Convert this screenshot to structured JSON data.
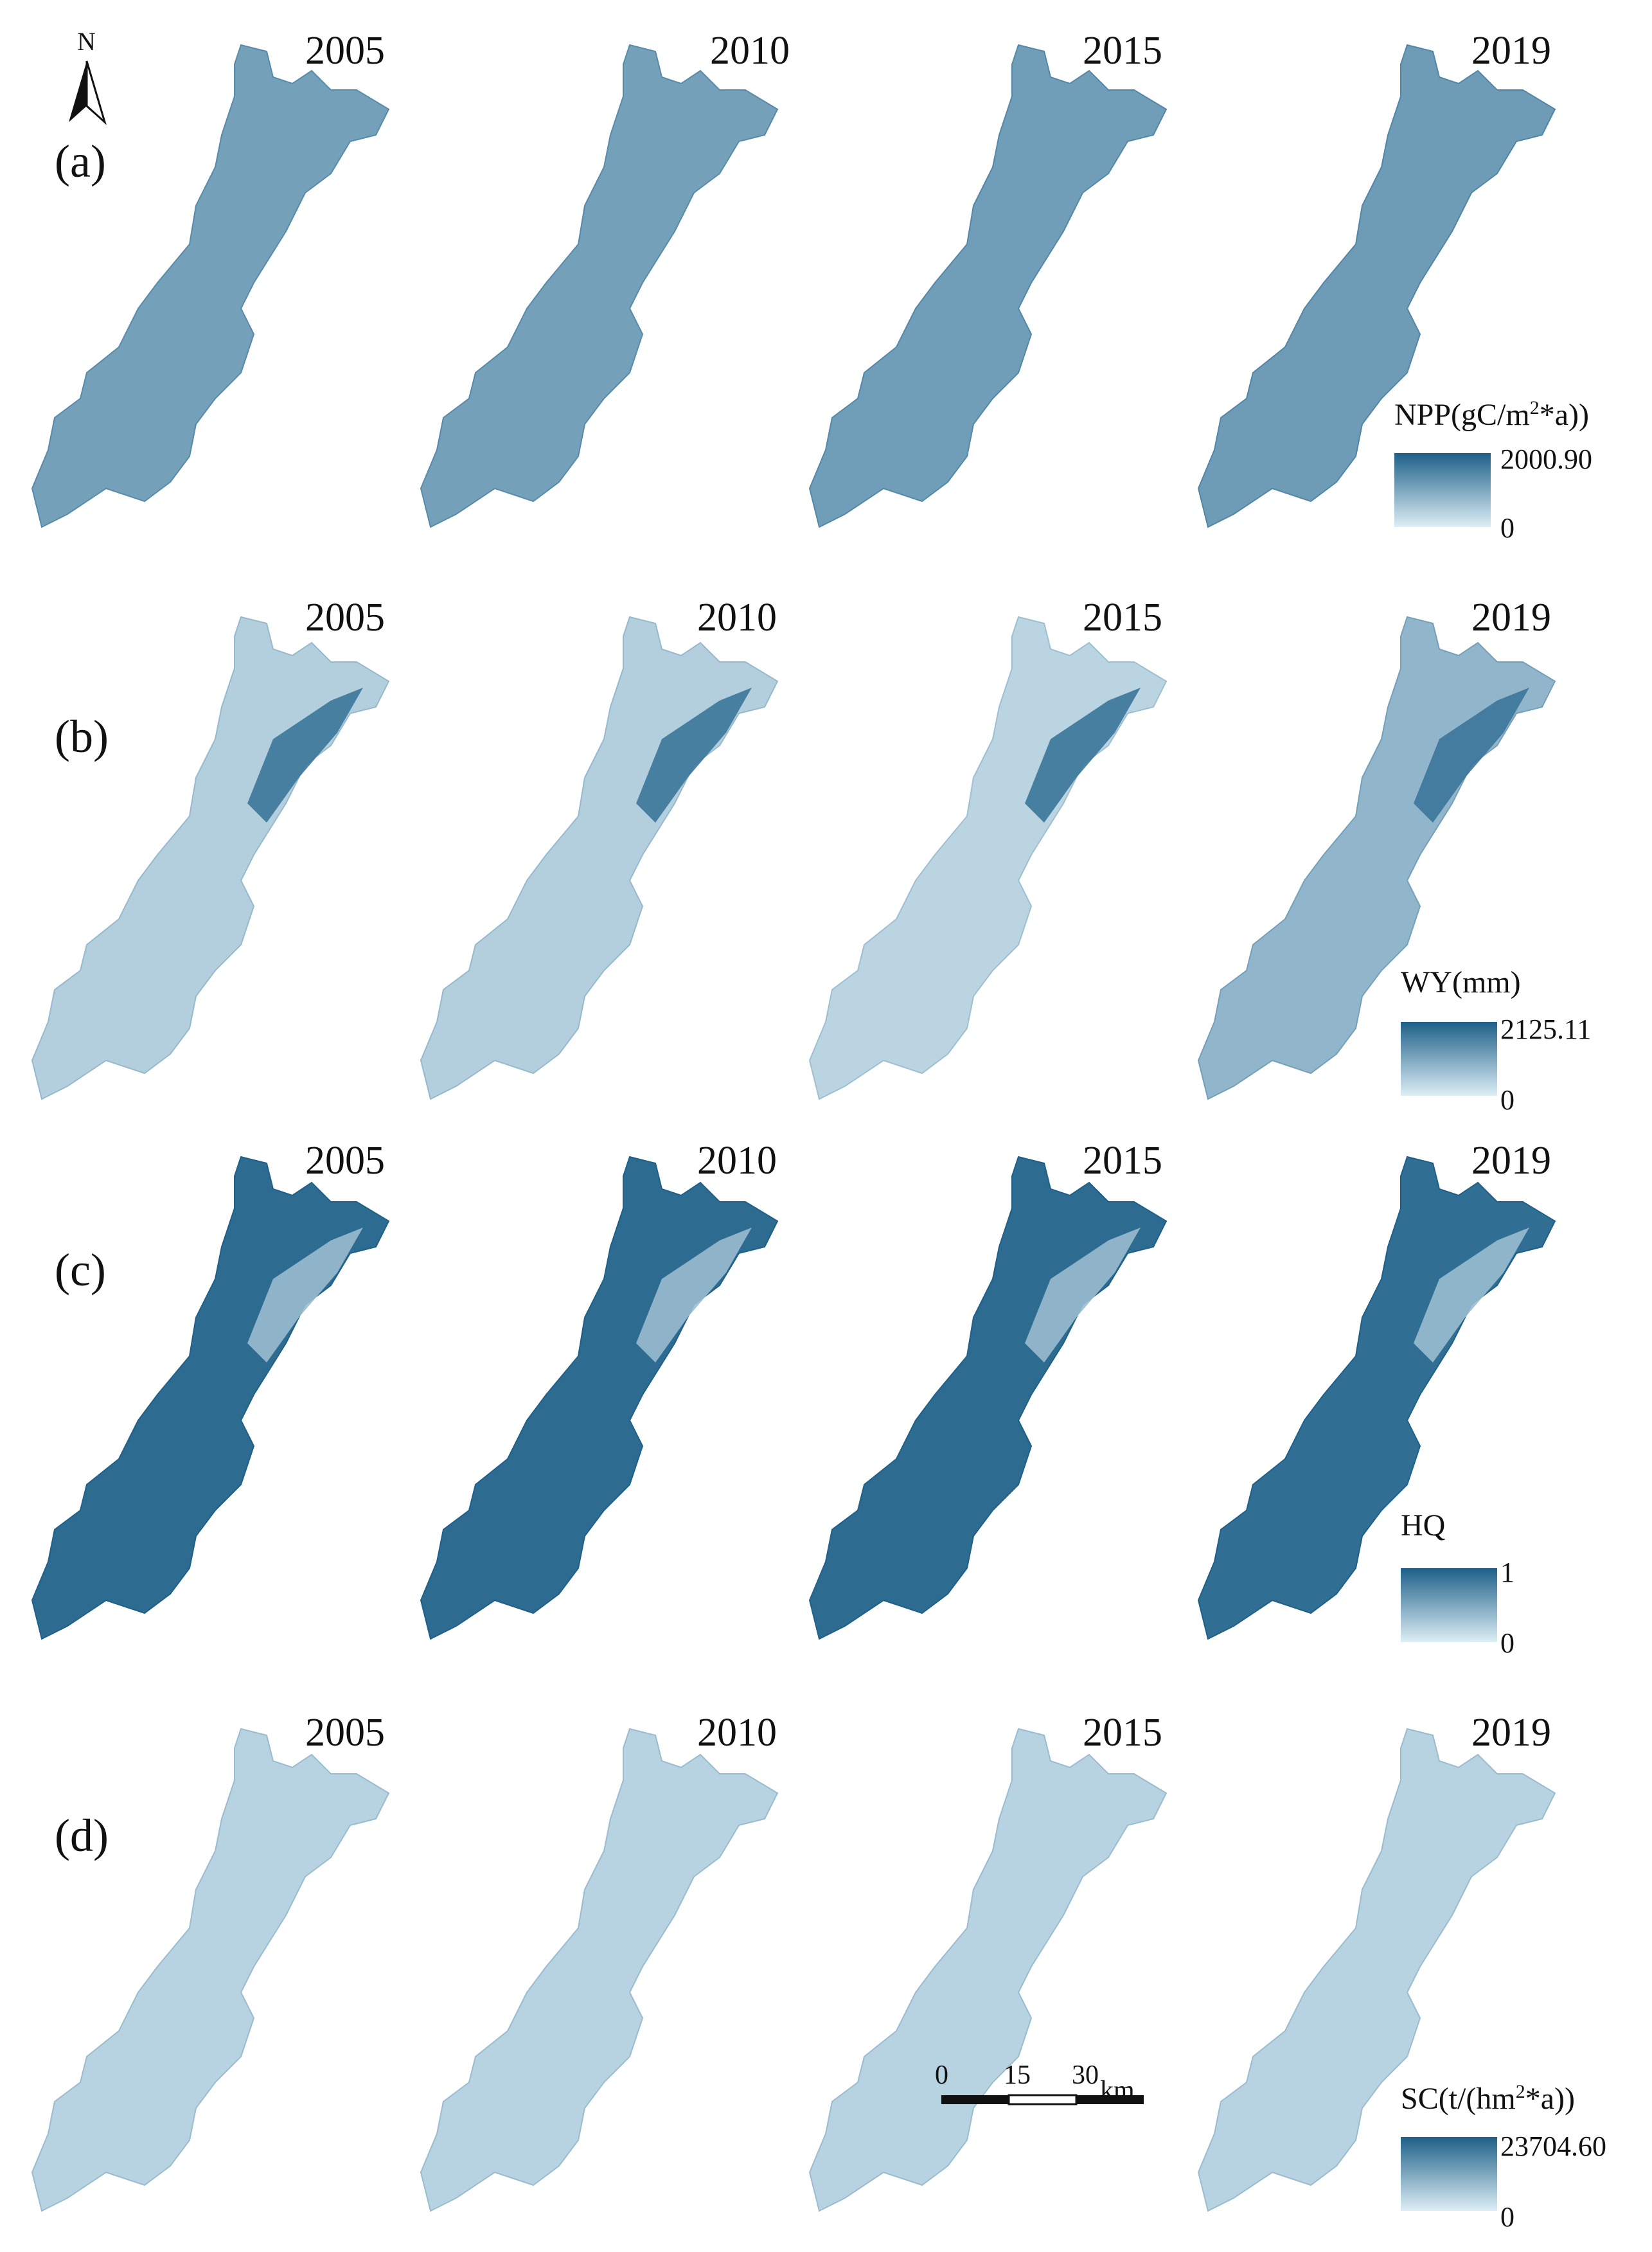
{
  "north_arrow": {
    "label": "N"
  },
  "rows": [
    {
      "label": "(a)",
      "years": [
        "2005",
        "2010",
        "2015",
        "2019"
      ],
      "legend": {
        "title": "NPP(gC/m",
        "sup": "2",
        "title_tail": "*a))",
        "max": "2000.90",
        "min": "0"
      },
      "shades": [
        0.55,
        0.55,
        0.57,
        0.58
      ],
      "accent": {
        "level": 0.0
      }
    },
    {
      "label": "(b)",
      "years": [
        "2005",
        "2010",
        "2015",
        "2019"
      ],
      "legend": {
        "title": "WY(mm)",
        "sup": "",
        "title_tail": "",
        "max": "2125.11",
        "min": "0"
      },
      "shades": [
        0.22,
        0.22,
        0.18,
        0.4
      ],
      "accent": {
        "level": 0.85
      }
    },
    {
      "label": "(c)",
      "years": [
        "2005",
        "2010",
        "2015",
        "2019"
      ],
      "legend": {
        "title": "HQ",
        "sup": "",
        "title_tail": "",
        "max": "1",
        "min": "0"
      },
      "shades": [
        0.92,
        0.92,
        0.92,
        0.9
      ],
      "accent": {
        "level": 0.35
      }
    },
    {
      "label": "(d)",
      "years": [
        "2005",
        "2010",
        "2015",
        "2019"
      ],
      "legend": {
        "title": "SC(t/(hm",
        "sup": "2",
        "title_tail": "*a))",
        "max": "23704.60",
        "min": "0"
      },
      "shades": [
        0.2,
        0.2,
        0.2,
        0.2
      ],
      "accent": {
        "level": 0.0
      }
    }
  ],
  "scale_bar": {
    "ticks": [
      "0",
      "15",
      "30"
    ],
    "unit": "km"
  },
  "colors": {
    "ramp_dark": "#1e6088",
    "ramp_light": "#ddeef6"
  }
}
